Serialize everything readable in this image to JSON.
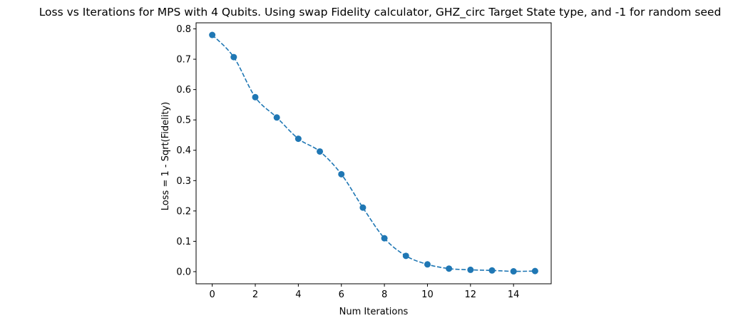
{
  "chart_data": {
    "type": "line",
    "title": "Loss vs Iterations for MPS with 4 Qubits. Using swap Fidelity calculator, GHZ_circ Target State type, and -1 for random seed",
    "xlabel": "Num Iterations",
    "ylabel": "Loss = 1 - Sqrt(Fidelity)",
    "xlim": [
      -0.75,
      15.75
    ],
    "ylim": [
      -0.04,
      0.82
    ],
    "xticks": [
      0,
      2,
      4,
      6,
      8,
      10,
      12,
      14
    ],
    "yticks": [
      0.0,
      0.1,
      0.2,
      0.3,
      0.4,
      0.5,
      0.6,
      0.7,
      0.8
    ],
    "xtick_labels": [
      "0",
      "2",
      "4",
      "6",
      "8",
      "10",
      "12",
      "14"
    ],
    "ytick_labels": [
      "0.0",
      "0.1",
      "0.2",
      "0.3",
      "0.4",
      "0.5",
      "0.6",
      "0.7",
      "0.8"
    ],
    "grid": false,
    "line_style": "dashed",
    "marker": "circle",
    "color": "#1f77b4",
    "series": [
      {
        "x": [
          0,
          1,
          2,
          3,
          4,
          5,
          6,
          7,
          8,
          9,
          10,
          11,
          12,
          13,
          14,
          15
        ],
        "values": [
          0.78,
          0.707,
          0.575,
          0.508,
          0.438,
          0.396,
          0.321,
          0.211,
          0.11,
          0.052,
          0.024,
          0.01,
          0.006,
          0.004,
          0.001,
          0.002
        ]
      }
    ]
  }
}
